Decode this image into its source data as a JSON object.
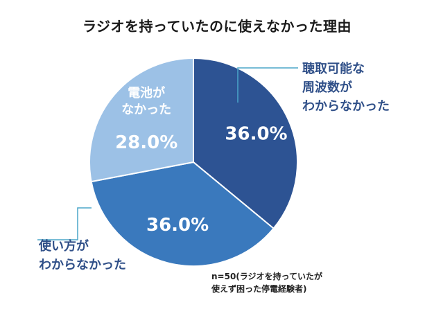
{
  "chart_data": {
    "type": "pie",
    "title": "ラジオを持っていたのに使えなかった理由",
    "slices": [
      {
        "label_lines": [
          "聴取可能な",
          "周波数が",
          "わからなかった"
        ],
        "value": 36.0,
        "value_label": "36.0%",
        "color": "#2d5393"
      },
      {
        "label_lines": [
          "使い方が",
          "わからなかった"
        ],
        "value": 36.0,
        "value_label": "36.0%",
        "color": "#3a79bd"
      },
      {
        "label_lines": [
          "電池が",
          "なかった"
        ],
        "value": 28.0,
        "value_label": "28.0%",
        "color": "#9cc1e6"
      }
    ],
    "note_lines": [
      "n=50(ラジオを持っていたが",
      "使えず困った停電経験者)"
    ],
    "callout_line_color": "#4aa6c9"
  }
}
